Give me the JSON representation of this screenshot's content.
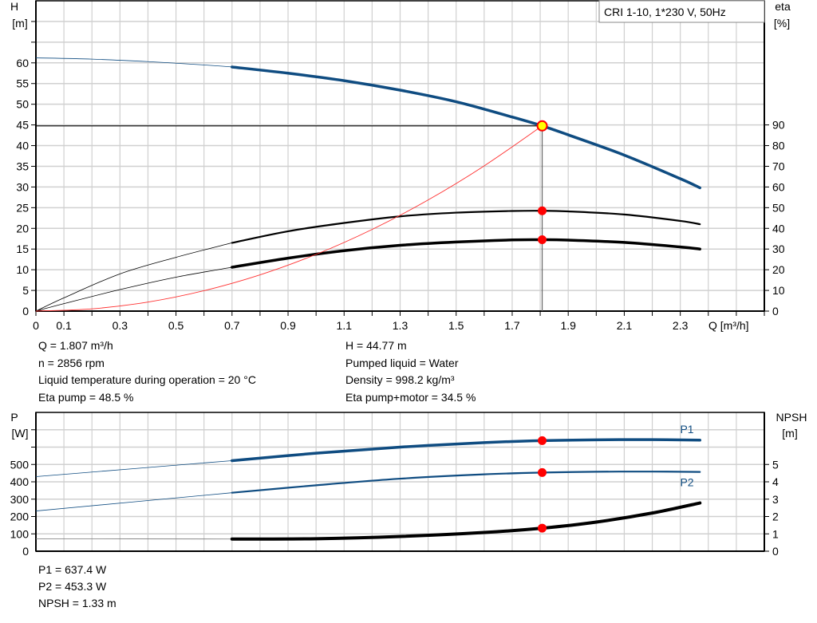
{
  "colors": {
    "head": "#0f4c81",
    "eta": "#000000",
    "system": "#ff3030",
    "p1": "#0f4c81",
    "p2": "#0f4c81",
    "npsh": "#000000",
    "duty_point": "#ff0000",
    "duty_point_fill": "#ffff00",
    "grid": "#d0d0d0"
  },
  "chart_data": [
    {
      "type": "line",
      "legend_box": "CRI 1-10, 1*230 V, 50Hz",
      "xlabel": "Q [m³/h]",
      "ylabel_left": "H",
      "ylabel_left_unit": "[m]",
      "ylabel_right": "eta",
      "ylabel_right_unit": "[%]",
      "xlim": [
        0,
        2.6
      ],
      "ylim_left": [
        0,
        75
      ],
      "ylim_right": [
        0,
        150
      ],
      "grid": true,
      "x_ticks": [
        "0",
        "0.1",
        "0.3",
        "0.5",
        "0.7",
        "0.9",
        "1.1",
        "1.3",
        "1.5",
        "1.7",
        "1.9",
        "2.1",
        "2.3"
      ],
      "y_left_ticks": [
        "0",
        "5",
        "10",
        "15",
        "20",
        "25",
        "30",
        "35",
        "40",
        "45",
        "50",
        "55",
        "60"
      ],
      "y_right_ticks": [
        "0",
        "10",
        "20",
        "30",
        "40",
        "50",
        "60",
        "70",
        "80",
        "90"
      ],
      "duty_point": {
        "q": 1.807,
        "h": 44.77,
        "eta_pump": 48.5,
        "eta_total": 34.5
      },
      "series": [
        {
          "key": "head",
          "axis": "left",
          "thin_until": 0.69,
          "x": [
            0,
            0.2,
            0.4,
            0.6,
            0.7,
            0.9,
            1.1,
            1.3,
            1.5,
            1.7,
            1.807,
            1.9,
            2.1,
            2.3,
            2.37
          ],
          "y": [
            61.2,
            60.9,
            60.3,
            59.5,
            59.0,
            57.5,
            55.7,
            53.4,
            50.6,
            46.9,
            44.77,
            42.6,
            37.7,
            32.0,
            29.8
          ]
        },
        {
          "key": "eta_pump",
          "axis": "right",
          "thin_until": 0.69,
          "x": [
            0,
            0.1,
            0.3,
            0.5,
            0.7,
            0.9,
            1.1,
            1.3,
            1.5,
            1.7,
            1.807,
            1.9,
            2.1,
            2.3,
            2.37
          ],
          "y": [
            0,
            6.4,
            18,
            26,
            33,
            38.6,
            42.6,
            45.8,
            47.6,
            48.4,
            48.5,
            48.2,
            46.7,
            43.6,
            42
          ]
        },
        {
          "key": "eta_total",
          "axis": "right",
          "thin_until": 0.69,
          "x": [
            0,
            0.1,
            0.3,
            0.5,
            0.7,
            0.9,
            1.1,
            1.3,
            1.5,
            1.7,
            1.807,
            1.9,
            2.1,
            2.3,
            2.37
          ],
          "y": [
            0,
            3.6,
            10.4,
            16.4,
            21.2,
            25.6,
            29.2,
            31.8,
            33.4,
            34.4,
            34.5,
            34.3,
            33.2,
            31,
            30
          ]
        },
        {
          "key": "system",
          "axis": "left",
          "thin_until": 1.807,
          "x": [
            0,
            0.2,
            0.4,
            0.6,
            0.8,
            1.0,
            1.2,
            1.4,
            1.6,
            1.807
          ],
          "y": [
            0,
            0.55,
            2.19,
            4.94,
            8.77,
            13.71,
            19.74,
            26.87,
            35.1,
            44.77
          ]
        }
      ]
    },
    {
      "type": "line",
      "ylabel_left": "P",
      "ylabel_left_unit": "[W]",
      "ylabel_right": "NPSH",
      "ylabel_right_unit": "[m]",
      "xlim": [
        0,
        2.6
      ],
      "ylim_left": [
        0,
        800
      ],
      "ylim_right": [
        0,
        8
      ],
      "grid": true,
      "y_left_ticks": [
        "0",
        "100",
        "200",
        "300",
        "400",
        "500"
      ],
      "y_right_ticks": [
        "0",
        "1",
        "2",
        "3",
        "4",
        "5"
      ],
      "duty_point": {
        "q": 1.807,
        "p1": 637.4,
        "p2": 453.3,
        "npsh": 1.33
      },
      "series": [
        {
          "key": "p1",
          "name": "P1",
          "axis": "left",
          "thin_until": 0.69,
          "x": [
            0,
            0.7,
            1.0,
            1.3,
            1.6,
            1.807,
            2.0,
            2.2,
            2.37
          ],
          "y": [
            430,
            522,
            565,
            600,
            626,
            637.4,
            642,
            643,
            640
          ]
        },
        {
          "key": "p2",
          "name": "P2",
          "axis": "left",
          "thin_until": 0.69,
          "x": [
            0,
            0.7,
            1.0,
            1.3,
            1.6,
            1.807,
            2.0,
            2.2,
            2.37
          ],
          "y": [
            232,
            337,
            380,
            418,
            443,
            453.3,
            458,
            459,
            457
          ]
        },
        {
          "key": "npsh",
          "axis": "right",
          "thin_until": 0.69,
          "x": [
            0,
            0.7,
            1.0,
            1.3,
            1.6,
            1.807,
            2.0,
            2.2,
            2.37
          ],
          "y": [
            0.72,
            0.7,
            0.72,
            0.85,
            1.08,
            1.33,
            1.68,
            2.2,
            2.78
          ]
        }
      ]
    }
  ],
  "info_top": {
    "left": [
      "Q = 1.807 m³/h",
      "n = 2856 rpm",
      "Liquid temperature during operation = 20 °C",
      "Eta pump = 48.5 %"
    ],
    "right": [
      "H = 44.77 m",
      "Pumped liquid = Water",
      "Density = 998.2 kg/m³",
      "Eta pump+motor = 34.5 %"
    ]
  },
  "info_bottom": [
    "P1 = 637.4 W",
    "P2 = 453.3 W",
    "NPSH = 1.33 m"
  ]
}
